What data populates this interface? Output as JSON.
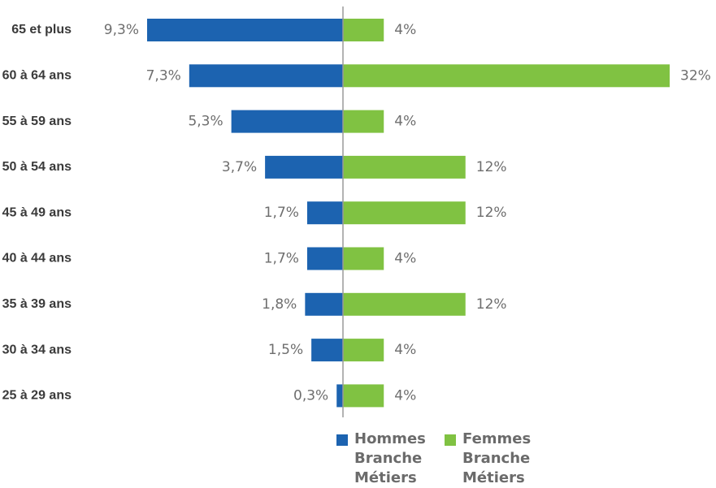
{
  "chart_data": {
    "type": "bar",
    "orientation": "horizontal-diverging",
    "categories": [
      "65 et plus",
      "60 à 64 ans",
      "55 à 59 ans",
      "50 à 54 ans",
      "45 à 49 ans",
      "40 à 44 ans",
      "35 à 39 ans",
      "30 à 34 ans",
      "25 à 29 ans"
    ],
    "series": [
      {
        "name": "Hommes Branche Métiers",
        "color": "#1c63b0",
        "side": "left",
        "values": [
          9.3,
          7.3,
          5.3,
          3.7,
          1.7,
          1.7,
          1.8,
          1.5,
          0.3
        ],
        "labels": [
          "9,3%",
          "7,3%",
          "5,3%",
          "3,7%",
          "1,7%",
          "1,7%",
          "1,8%",
          "1,5%",
          "0,3%"
        ]
      },
      {
        "name": "Femmes Branche Métiers",
        "color": "#80c242",
        "side": "right",
        "values": [
          4,
          32,
          4,
          12,
          12,
          4,
          12,
          4,
          4
        ],
        "labels": [
          "4%",
          "32%",
          "4%",
          "12%",
          "12%",
          "4%",
          "12%",
          "4%",
          "4%"
        ]
      }
    ],
    "legend_position": "bottom",
    "grid": false
  }
}
